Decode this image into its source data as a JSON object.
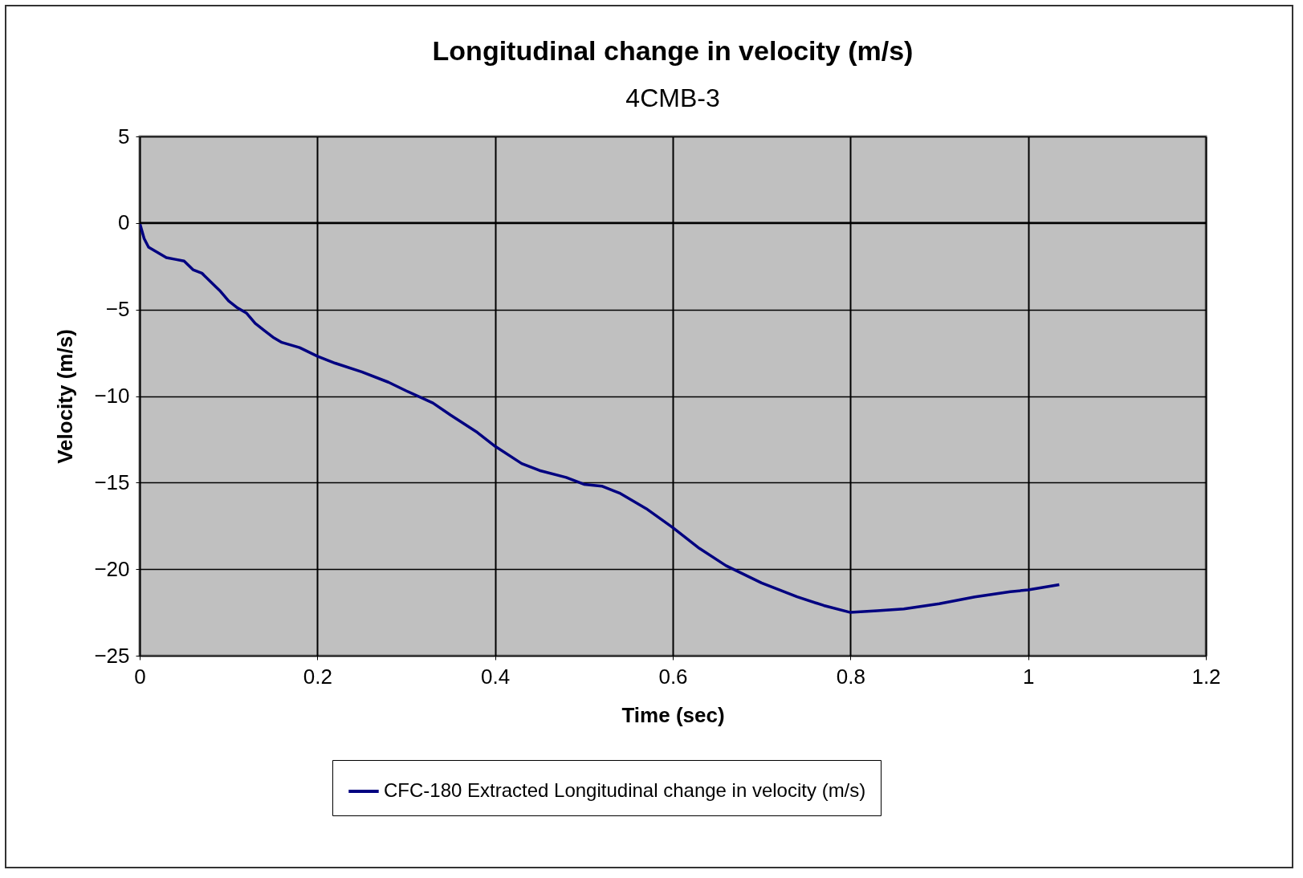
{
  "chart_data": {
    "type": "line",
    "title": "Longitudinal change in velocity (m/s)",
    "subtitle": "4CMB-3",
    "xlabel": "Time (sec)",
    "ylabel": "Velocity (m/s)",
    "xlim": [
      0,
      1.2
    ],
    "xticks": [
      0,
      0.2,
      0.4,
      0.6,
      0.8,
      1,
      1.2
    ],
    "ylim": [
      -25,
      5
    ],
    "yticks": [
      -25,
      -20,
      -15,
      -10,
      -5,
      0,
      5
    ],
    "grid": true,
    "legend": "bottom",
    "marker": "none",
    "line_style": "solid",
    "series": [
      {
        "name": "CFC-180 Extracted Longitudinal change in velocity (m/s)",
        "color": "#000080",
        "x": [
          0,
          0.005,
          0.01,
          0.02,
          0.03,
          0.04,
          0.05,
          0.06,
          0.07,
          0.08,
          0.09,
          0.1,
          0.11,
          0.12,
          0.13,
          0.14,
          0.15,
          0.16,
          0.18,
          0.2,
          0.22,
          0.25,
          0.28,
          0.3,
          0.33,
          0.35,
          0.38,
          0.4,
          0.43,
          0.45,
          0.48,
          0.5,
          0.52,
          0.54,
          0.57,
          0.6,
          0.63,
          0.66,
          0.7,
          0.74,
          0.77,
          0.8,
          0.83,
          0.86,
          0.9,
          0.94,
          0.98,
          1,
          1.035
        ],
        "values": [
          0,
          -0.9,
          -1.4,
          -1.7,
          -2,
          -2.1,
          -2.2,
          -2.7,
          -2.9,
          -3.4,
          -3.9,
          -4.5,
          -4.9,
          -5.2,
          -5.8,
          -6.2,
          -6.6,
          -6.9,
          -7.2,
          -7.7,
          -8.1,
          -8.6,
          -9.2,
          -9.7,
          -10.4,
          -11.1,
          -12.1,
          -12.9,
          -13.9,
          -14.3,
          -14.7,
          -15.1,
          -15.2,
          -15.6,
          -16.5,
          -17.6,
          -18.8,
          -19.8,
          -20.8,
          -21.6,
          -22.1,
          -22.5,
          -22.4,
          -22.3,
          -22,
          -21.6,
          -21.3,
          -21.2,
          -20.9
        ]
      }
    ]
  }
}
